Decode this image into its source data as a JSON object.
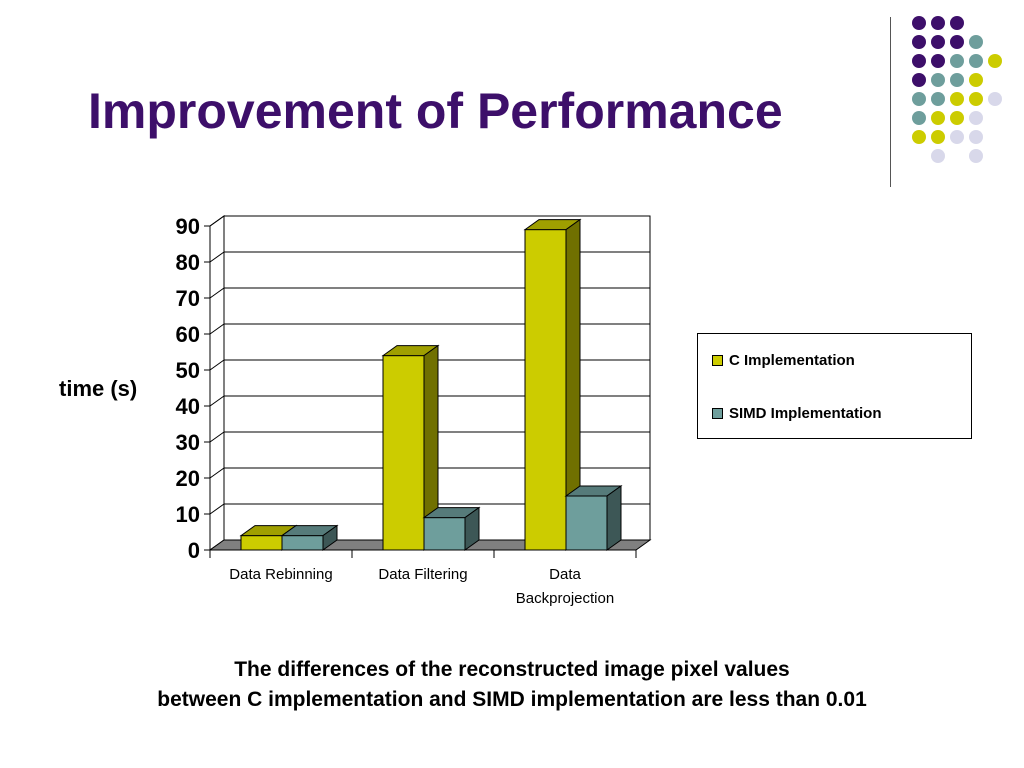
{
  "slide": {
    "title": "Improvement of Performance",
    "footer_line1": "The differences of the reconstructed image pixel values",
    "footer_line2": "between C implementation and SIMD implementation are less than 0.01"
  },
  "decoration": {
    "dot_colors": {
      "purple": "#3d0f6a",
      "teal": "#6e9e9c",
      "yellow": "#cccc00",
      "lavender": "#d8d8ea"
    }
  },
  "chart_data": {
    "type": "bar",
    "title": "",
    "xlabel": "",
    "ylabel": "time (s)",
    "ylim": [
      0,
      90
    ],
    "yticks": [
      0,
      10,
      20,
      30,
      40,
      50,
      60,
      70,
      80,
      90
    ],
    "categories": [
      "Data Rebinning",
      "Data Filtering",
      "Data Backprojection"
    ],
    "series": [
      {
        "name": "C Implementation",
        "values": [
          4,
          54,
          89
        ],
        "color": "#cccc00"
      },
      {
        "name": "SIMD Implementation",
        "values": [
          4,
          9,
          15
        ],
        "color": "#6e9e9c"
      }
    ],
    "legend_position": "right",
    "grid": true,
    "style": "3d-column"
  }
}
